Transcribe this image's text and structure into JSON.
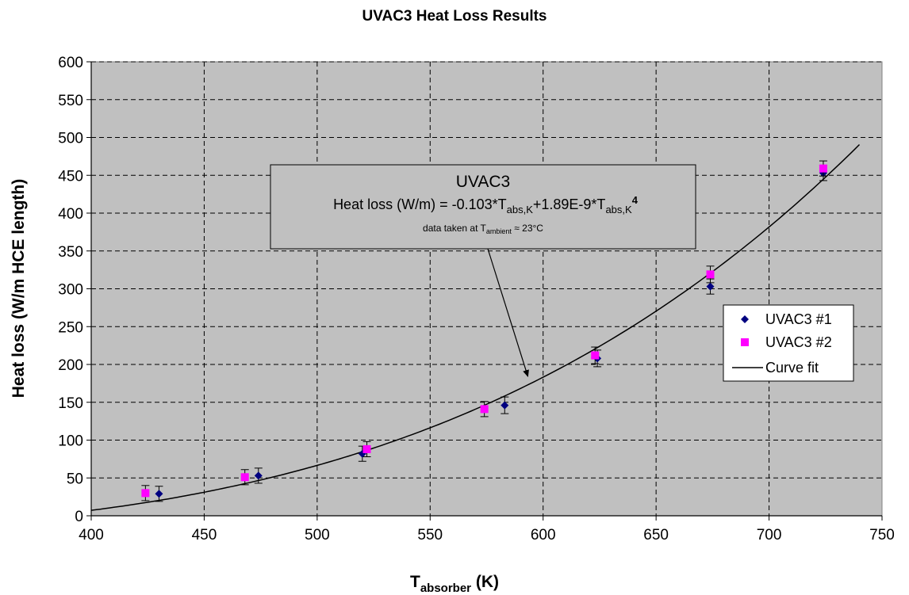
{
  "chart_data": {
    "type": "scatter",
    "title": "UVAC3 Heat Loss Results",
    "xlabel_main": "T",
    "xlabel_sub": "absorber",
    "xlabel_unit": " (K)",
    "ylabel": "Heat loss (W/m HCE length)",
    "xlim": [
      400,
      750
    ],
    "ylim": [
      0,
      600
    ],
    "x_ticks": [
      400,
      450,
      500,
      550,
      600,
      650,
      700,
      750
    ],
    "y_ticks": [
      0,
      50,
      100,
      150,
      200,
      250,
      300,
      350,
      400,
      450,
      500,
      550,
      600
    ],
    "grid": true,
    "legend_position": "right",
    "series": [
      {
        "name": "UVAC3 #1",
        "marker": "diamond",
        "color": "#000080",
        "points": [
          {
            "x": 430,
            "y": 29,
            "err": 10
          },
          {
            "x": 474,
            "y": 53,
            "err": 10
          },
          {
            "x": 520,
            "y": 82,
            "err": 10
          },
          {
            "x": 583,
            "y": 146,
            "err": 11
          },
          {
            "x": 624,
            "y": 208,
            "err": 11
          },
          {
            "x": 674,
            "y": 303,
            "err": 10
          },
          {
            "x": 724,
            "y": 453,
            "err": 10
          }
        ]
      },
      {
        "name": "UVAC3 #2",
        "marker": "square",
        "color": "#ff00ff",
        "points": [
          {
            "x": 424,
            "y": 30,
            "err": 10
          },
          {
            "x": 468,
            "y": 51,
            "err": 10
          },
          {
            "x": 522,
            "y": 88,
            "err": 10
          },
          {
            "x": 574,
            "y": 141,
            "err": 10
          },
          {
            "x": 623,
            "y": 212,
            "err": 11
          },
          {
            "x": 674,
            "y": 319,
            "err": 11
          },
          {
            "x": 724,
            "y": 459,
            "err": 10
          }
        ]
      }
    ],
    "curve_fit": {
      "name": "Curve fit",
      "color": "#000000",
      "x_range": [
        400,
        740
      ],
      "coef_linear": -0.103,
      "coef_quartic": 1.89e-09
    },
    "annotation": {
      "title": "UVAC3",
      "formula_prefix": "Heat loss (W/m) = -0.103*T",
      "formula_sub1": "abs,K",
      "formula_mid": "+1.89E-9*T",
      "formula_sub2": "abs,K",
      "formula_sup": "4",
      "note_prefix": "data taken at T",
      "note_sub": "ambient",
      "note_suffix": " ≈ 23°C",
      "arrow_target": {
        "x": 595,
        "y": 180
      }
    },
    "colors": {
      "plot_background": "#c0c0c0",
      "annotation_background": "#c0c0c0"
    }
  }
}
